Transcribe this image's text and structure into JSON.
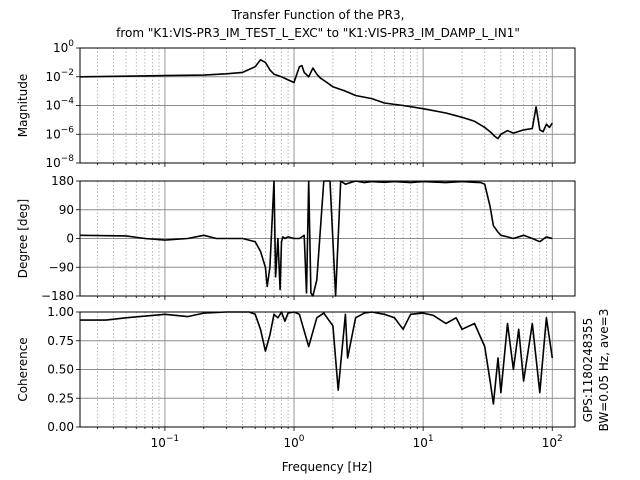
{
  "figure": {
    "title_line1": "Transfer Function of the PR3,",
    "title_line2": "from \"K1:VIS-PR3_IM_TEST_L_EXC\" to \"K1:VIS-PR3_IM_DAMP_L_IN1\"",
    "side_line1": "GPS:1180248355",
    "side_line2": "BW=0.05 Hz, ave=3",
    "xlabel": "Frequency [Hz]"
  },
  "chart_data": [
    {
      "type": "line",
      "xscale": "log",
      "yscale": "log",
      "xlim": [
        0.022,
        150
      ],
      "ylim": [
        1e-08,
        1
      ],
      "ylabel": "Magnitude",
      "yticks": [
        1e-08,
        1e-06,
        0.0001,
        0.01,
        1
      ],
      "ytick_labels": [
        {
          "base": "10",
          "exp": "−8"
        },
        {
          "base": "10",
          "exp": "−6"
        },
        {
          "base": "10",
          "exp": "−4"
        },
        {
          "base": "10",
          "exp": "−2"
        },
        {
          "base": "10",
          "exp": "0"
        }
      ],
      "grid": true,
      "series": [
        {
          "color": "#000000",
          "x": [
            0.022,
            0.05,
            0.1,
            0.2,
            0.3,
            0.4,
            0.5,
            0.55,
            0.6,
            0.65,
            0.7,
            0.8,
            0.9,
            1.0,
            1.05,
            1.1,
            1.15,
            1.2,
            1.3,
            1.4,
            1.5,
            1.6,
            1.8,
            2,
            2.5,
            3,
            4,
            5,
            7,
            10,
            15,
            20,
            25,
            30,
            33,
            36,
            38,
            40,
            45,
            50,
            60,
            70,
            75,
            80,
            85,
            90,
            95,
            100
          ],
          "y": [
            0.01,
            0.011,
            0.012,
            0.013,
            0.016,
            0.02,
            0.05,
            0.15,
            0.1,
            0.03,
            0.015,
            0.01,
            0.006,
            0.004,
            0.015,
            0.05,
            0.06,
            0.02,
            0.01,
            0.04,
            0.015,
            0.008,
            0.004,
            0.002,
            0.001,
            0.0005,
            0.0003,
            0.00015,
            0.0001,
            6e-05,
            3e-05,
            1.5e-05,
            8e-06,
            3e-06,
            1.5e-06,
            7e-07,
            5e-07,
            1e-06,
            1.8e-06,
            1.2e-06,
            2e-06,
            2.5e-06,
            8e-05,
            2e-06,
            1.5e-06,
            5e-06,
            3e-06,
            6e-06
          ]
        }
      ]
    },
    {
      "type": "line",
      "xscale": "log",
      "xlim": [
        0.022,
        150
      ],
      "ylim": [
        -180,
        180
      ],
      "ylabel": "Degree [deg]",
      "yticks": [
        -180,
        -90,
        0,
        90,
        180
      ],
      "ytick_labels": [
        "−180",
        "−90",
        "0",
        "90",
        "180"
      ],
      "grid": true,
      "series": [
        {
          "color": "#000000",
          "x": [
            0.022,
            0.05,
            0.07,
            0.1,
            0.15,
            0.2,
            0.25,
            0.3,
            0.4,
            0.5,
            0.55,
            0.6,
            0.62,
            0.65,
            0.7,
            0.72,
            0.75,
            0.78,
            0.8,
            0.82,
            0.85,
            0.9,
            1.0,
            1.1,
            1.2,
            1.25,
            1.3,
            1.35,
            1.4,
            1.5,
            1.7,
            1.9,
            2.1,
            2.3,
            2.5,
            3,
            3.5,
            4,
            5,
            6,
            8,
            10,
            15,
            20,
            25,
            28,
            30,
            33,
            35,
            38,
            40,
            45,
            50,
            60,
            70,
            80,
            90,
            100
          ],
          "y": [
            10,
            8,
            0,
            -5,
            0,
            10,
            0,
            0,
            0,
            -10,
            -40,
            -90,
            -150,
            -90,
            180,
            -120,
            0,
            -160,
            -10,
            5,
            0,
            5,
            0,
            0,
            10,
            -170,
            180,
            -170,
            -180,
            -130,
            180,
            180,
            -180,
            180,
            170,
            180,
            175,
            178,
            176,
            178,
            175,
            178,
            175,
            178,
            176,
            175,
            170,
            100,
            40,
            20,
            10,
            5,
            0,
            10,
            0,
            -10,
            5,
            0
          ]
        }
      ]
    },
    {
      "type": "line",
      "xscale": "log",
      "xlim": [
        0.022,
        150
      ],
      "ylim": [
        0,
        1
      ],
      "ylabel": "Coherence",
      "yticks": [
        0,
        0.25,
        0.5,
        0.75,
        1
      ],
      "ytick_labels": [
        "0.00",
        "0.25",
        "0.50",
        "0.75",
        "1.00"
      ],
      "xticks": [
        0.1,
        1,
        10,
        100
      ],
      "xtick_labels": [
        {
          "base": "10",
          "exp": "−1"
        },
        {
          "base": "10",
          "exp": "0"
        },
        {
          "base": "10",
          "exp": "1"
        },
        {
          "base": "10",
          "exp": "2"
        }
      ],
      "grid": true,
      "series": [
        {
          "color": "#000000",
          "x": [
            0.022,
            0.035,
            0.05,
            0.08,
            0.1,
            0.15,
            0.2,
            0.3,
            0.45,
            0.5,
            0.55,
            0.6,
            0.65,
            0.7,
            0.75,
            0.8,
            0.85,
            0.9,
            1.0,
            1.1,
            1.3,
            1.5,
            1.7,
            2,
            2.2,
            2.5,
            2.6,
            3,
            3.5,
            4,
            5,
            6,
            7,
            8,
            10,
            12,
            15,
            18,
            20,
            25,
            30,
            33,
            35,
            38,
            40,
            45,
            50,
            55,
            60,
            70,
            80,
            90,
            100
          ],
          "y": [
            0.93,
            0.93,
            0.95,
            0.97,
            0.98,
            0.96,
            0.99,
            1.0,
            1.0,
            0.98,
            0.85,
            0.66,
            0.8,
            0.98,
            0.95,
            1.0,
            0.92,
            0.99,
            1.0,
            0.98,
            0.7,
            0.95,
            0.99,
            0.88,
            0.32,
            0.98,
            0.6,
            0.95,
            0.99,
            1.0,
            0.98,
            0.95,
            0.85,
            0.98,
            0.99,
            0.97,
            0.9,
            0.95,
            0.85,
            0.9,
            0.7,
            0.4,
            0.2,
            0.6,
            0.3,
            0.9,
            0.5,
            0.85,
            0.4,
            0.9,
            0.3,
            0.95,
            0.6
          ]
        }
      ]
    }
  ]
}
